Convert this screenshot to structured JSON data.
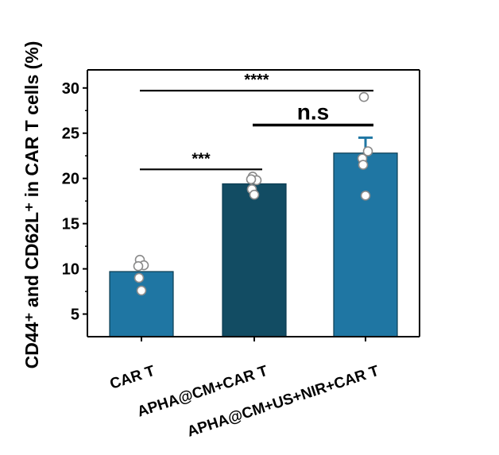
{
  "chart_data": {
    "type": "bar",
    "ylabel": "CD44⁺ and CD62L⁺ in CAR T cells (%)",
    "ylim": [
      2.5,
      32
    ],
    "yticks": [
      5,
      10,
      15,
      20,
      25,
      30
    ],
    "categories": [
      "CAR T",
      "APHA@CM+CAR T",
      "APHA@CM+US+NIR+CAR T"
    ],
    "values": [
      9.7,
      19.4,
      22.8
    ],
    "error": [
      0,
      0,
      1.7
    ],
    "points": [
      [
        11.0,
        10.4,
        10.3,
        9.0,
        7.6
      ],
      [
        20.2,
        19.8,
        19.9,
        18.8,
        18.2
      ],
      [
        29.0,
        23.0,
        22.2,
        21.5,
        18.1
      ]
    ],
    "bar_colors": [
      "#1f76a3",
      "#124c63",
      "#1f76a3"
    ],
    "error_color": "#1f76a3",
    "significance": [
      {
        "from": 0,
        "to": 1,
        "y": 21.0,
        "label": "***"
      },
      {
        "from": 1,
        "to": 2,
        "y": 25.9,
        "label": "n.s"
      },
      {
        "from": 0,
        "to": 2,
        "y": 29.7,
        "label": "****"
      }
    ],
    "grid": false,
    "legend": false
  }
}
